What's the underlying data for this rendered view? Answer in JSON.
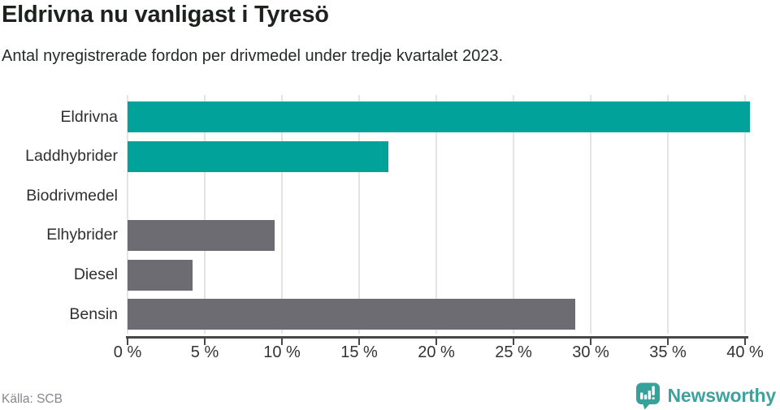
{
  "header": {
    "title": "Eldrivna nu vanligast i Tyresö",
    "subtitle": "Antal nyregistrerade fordon per drivmedel under tredje kvartalet 2023."
  },
  "chart_data": {
    "type": "bar",
    "orientation": "horizontal",
    "title": "Eldrivna nu vanligast i Tyresö",
    "subtitle": "Antal nyregistrerade fordon per drivmedel under tredje kvartalet 2023.",
    "categories": [
      "Eldrivna",
      "Laddhybrider",
      "Biodrivmedel",
      "Elhybrider",
      "Diesel",
      "Bensin"
    ],
    "values": [
      40.3,
      16.9,
      0,
      9.5,
      4.2,
      29.0
    ],
    "unit": "%",
    "bar_colors": [
      "#00a29a",
      "#00a29a",
      "#00a29a",
      "#6d6c72",
      "#6d6c72",
      "#6d6c72"
    ],
    "xlim": [
      0,
      40
    ],
    "x_ticks": [
      0,
      5,
      10,
      15,
      20,
      25,
      30,
      35,
      40
    ],
    "x_tick_labels": [
      "0 %",
      "5 %",
      "10 %",
      "15 %",
      "20 %",
      "25 %",
      "30 %",
      "35 %",
      "40 %"
    ],
    "grid": true,
    "legend": false,
    "xlabel": "",
    "ylabel": ""
  },
  "footer": {
    "source": "Källa: SCB",
    "brand": "Newsworthy"
  },
  "colors": {
    "highlight_teal": "#00a29a",
    "neutral_gray": "#6d6c72",
    "brand_teal": "#3fa19c",
    "grid": "#e4e4e4",
    "axis": "#474747",
    "text_dark": "#1d221f",
    "text_muted": "#85878d"
  }
}
